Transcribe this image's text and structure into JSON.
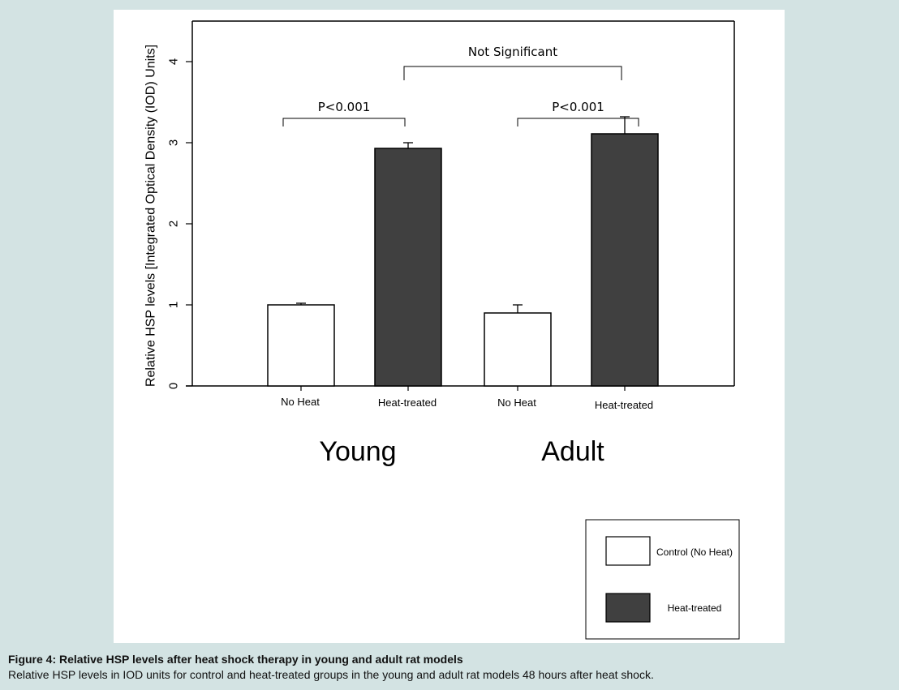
{
  "chart_data": {
    "type": "bar",
    "ylabel": "Relative HSP levels [Integrated Optical Density (IOD) Units]",
    "ylim": [
      0,
      4.5
    ],
    "yticks": [
      0,
      1,
      2,
      3,
      4
    ],
    "bars": [
      {
        "label": "No Heat",
        "group": "Young",
        "series": "Control (No Heat)",
        "value": 1.0,
        "error": 0.02
      },
      {
        "label": "Heat-treated",
        "group": "Young",
        "series": "Heat-treated",
        "value": 2.93,
        "error": 0.07
      },
      {
        "label": "No Heat",
        "group": "Adult",
        "series": "Control (No Heat)",
        "value": 0.9,
        "error": 0.1
      },
      {
        "label": "Heat-treated",
        "group": "Adult",
        "series": "Heat-treated",
        "value": 3.11,
        "error": 0.21
      }
    ],
    "groups": [
      "Young",
      "Adult"
    ],
    "series": [
      {
        "name": "Control (No Heat)",
        "color": "#ffffff"
      },
      {
        "name": "Heat-treated",
        "color": "#404040"
      }
    ],
    "annotations": [
      {
        "text": "P<0.001",
        "from_bar": 0,
        "to_bar": 1
      },
      {
        "text": "P<0.001",
        "from_bar": 2,
        "to_bar": 3
      },
      {
        "text": "Not Significant",
        "from_bar": 1,
        "to_bar": 3
      }
    ],
    "legend_position": "bottom-right",
    "grid": false
  },
  "caption": {
    "title": "Figure 4:  Relative HSP levels after heat shock therapy in young and adult rat models",
    "text": "Relative HSP levels in IOD units for control and heat-treated groups in the young and adult rat models 48 hours after heat shock."
  }
}
